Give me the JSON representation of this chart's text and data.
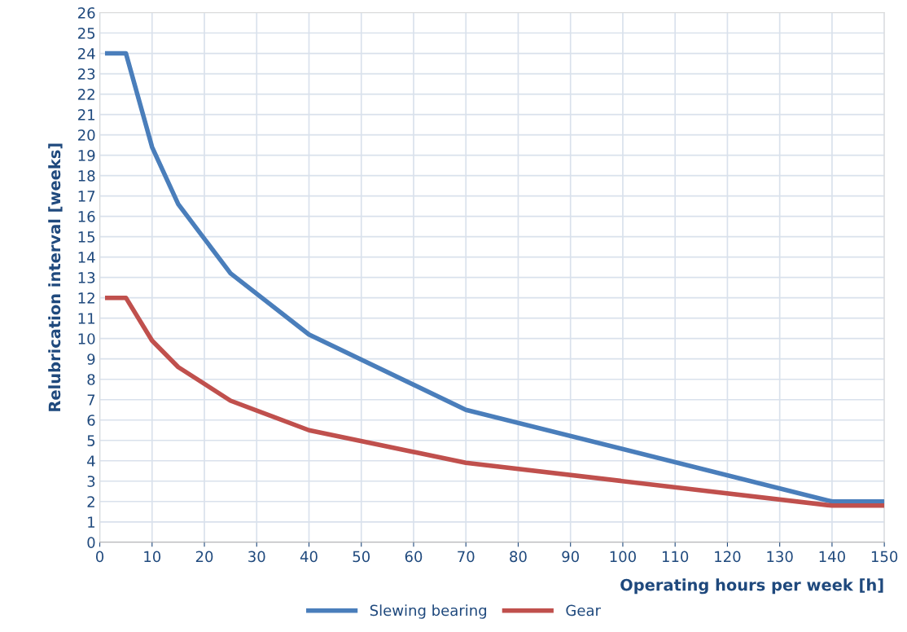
{
  "chart_data": {
    "type": "line",
    "xlabel": "Operating hours per week [h]",
    "ylabel": "Relubrication interval [weeks]",
    "xlim": [
      0,
      150
    ],
    "xticks": [
      0,
      10,
      20,
      30,
      40,
      50,
      60,
      70,
      80,
      90,
      100,
      110,
      120,
      130,
      140,
      150
    ],
    "ylim": [
      0,
      26
    ],
    "yticks": [
      0,
      1,
      2,
      3,
      4,
      5,
      6,
      7,
      8,
      9,
      10,
      11,
      12,
      13,
      14,
      15,
      16,
      17,
      18,
      19,
      20,
      21,
      22,
      23,
      24,
      25,
      26
    ],
    "grid": true,
    "legend": "bottom",
    "marker": "none",
    "line_style": "solid",
    "series": [
      {
        "name": "Slewing bearing",
        "color": "#4a7ebb",
        "x": [
          1,
          5,
          10,
          15,
          25,
          40,
          70,
          140,
          150
        ],
        "values": [
          24,
          24,
          19.4,
          16.6,
          13.2,
          10.2,
          6.5,
          2,
          2
        ]
      },
      {
        "name": "Gear",
        "color": "#c0504d",
        "x": [
          1,
          5,
          10,
          15,
          25,
          40,
          70,
          140,
          150
        ],
        "values": [
          12,
          12,
          9.9,
          8.6,
          6.95,
          5.5,
          3.9,
          1.8,
          1.8
        ]
      }
    ]
  }
}
